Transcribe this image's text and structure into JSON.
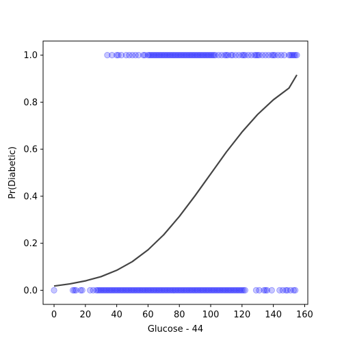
{
  "chart_data": {
    "type": "scatter",
    "title": "",
    "xlabel": "Glucose - 44",
    "ylabel": "Pr(Diabetic)",
    "xlim": [
      -7,
      162
    ],
    "ylim": [
      -0.06,
      1.06
    ],
    "x_ticks": [
      0,
      20,
      40,
      60,
      80,
      100,
      120,
      140,
      160
    ],
    "y_ticks": [
      0.0,
      0.2,
      0.4,
      0.6,
      0.8,
      1.0
    ],
    "y_tick_labels": [
      "0.0",
      "0.2",
      "0.4",
      "0.6",
      "0.8",
      "1.0"
    ],
    "grid": false,
    "colors": {
      "points": "#0000ff",
      "curve": "#444444"
    },
    "series": [
      {
        "type": "scatter",
        "y": 1,
        "x": [
          34,
          37,
          40,
          41,
          43,
          46,
          48,
          50,
          52,
          54,
          57,
          58,
          60,
          61,
          62,
          63,
          64,
          65,
          66,
          67,
          68,
          69,
          70,
          71,
          72,
          73,
          74,
          75,
          76,
          77,
          78,
          79,
          80,
          81,
          82,
          83,
          84,
          85,
          86,
          87,
          88,
          89,
          90,
          91,
          92,
          93,
          94,
          95,
          96,
          97,
          98,
          99,
          100,
          101,
          102,
          103,
          105,
          107,
          109,
          110,
          111,
          113,
          114,
          116,
          118,
          120,
          121,
          122,
          124,
          126,
          128,
          129,
          130,
          131,
          133,
          135,
          137,
          139,
          140,
          141,
          143,
          145,
          147,
          150,
          151,
          152,
          153,
          154,
          155
        ]
      },
      {
        "type": "scatter",
        "y": 0,
        "x": [
          0,
          12,
          13,
          14,
          17,
          18,
          23,
          25,
          27,
          28,
          29,
          30,
          31,
          32,
          33,
          34,
          35,
          36,
          37,
          38,
          39,
          40,
          41,
          42,
          43,
          44,
          45,
          46,
          47,
          48,
          49,
          50,
          51,
          52,
          53,
          54,
          55,
          56,
          57,
          58,
          59,
          60,
          61,
          62,
          63,
          64,
          65,
          66,
          67,
          68,
          69,
          70,
          71,
          72,
          73,
          74,
          75,
          76,
          77,
          78,
          79,
          80,
          81,
          82,
          83,
          84,
          85,
          86,
          87,
          88,
          89,
          90,
          91,
          92,
          93,
          94,
          95,
          96,
          97,
          98,
          99,
          100,
          101,
          102,
          103,
          104,
          105,
          106,
          107,
          108,
          109,
          110,
          111,
          112,
          113,
          114,
          115,
          116,
          117,
          118,
          119,
          120,
          121,
          122,
          129,
          131,
          134,
          135,
          136,
          139,
          144,
          146,
          148,
          149,
          151,
          153,
          154
        ]
      },
      {
        "type": "line",
        "name": "",
        "x": [
          0,
          10,
          20,
          30,
          40,
          50,
          60,
          70,
          80,
          90,
          100,
          110,
          120,
          130,
          140,
          150,
          155
        ],
        "y": [
          0.018,
          0.027,
          0.04,
          0.058,
          0.085,
          0.122,
          0.172,
          0.236,
          0.314,
          0.402,
          0.495,
          0.588,
          0.673,
          0.748,
          0.81,
          0.86,
          0.916
        ]
      }
    ]
  }
}
